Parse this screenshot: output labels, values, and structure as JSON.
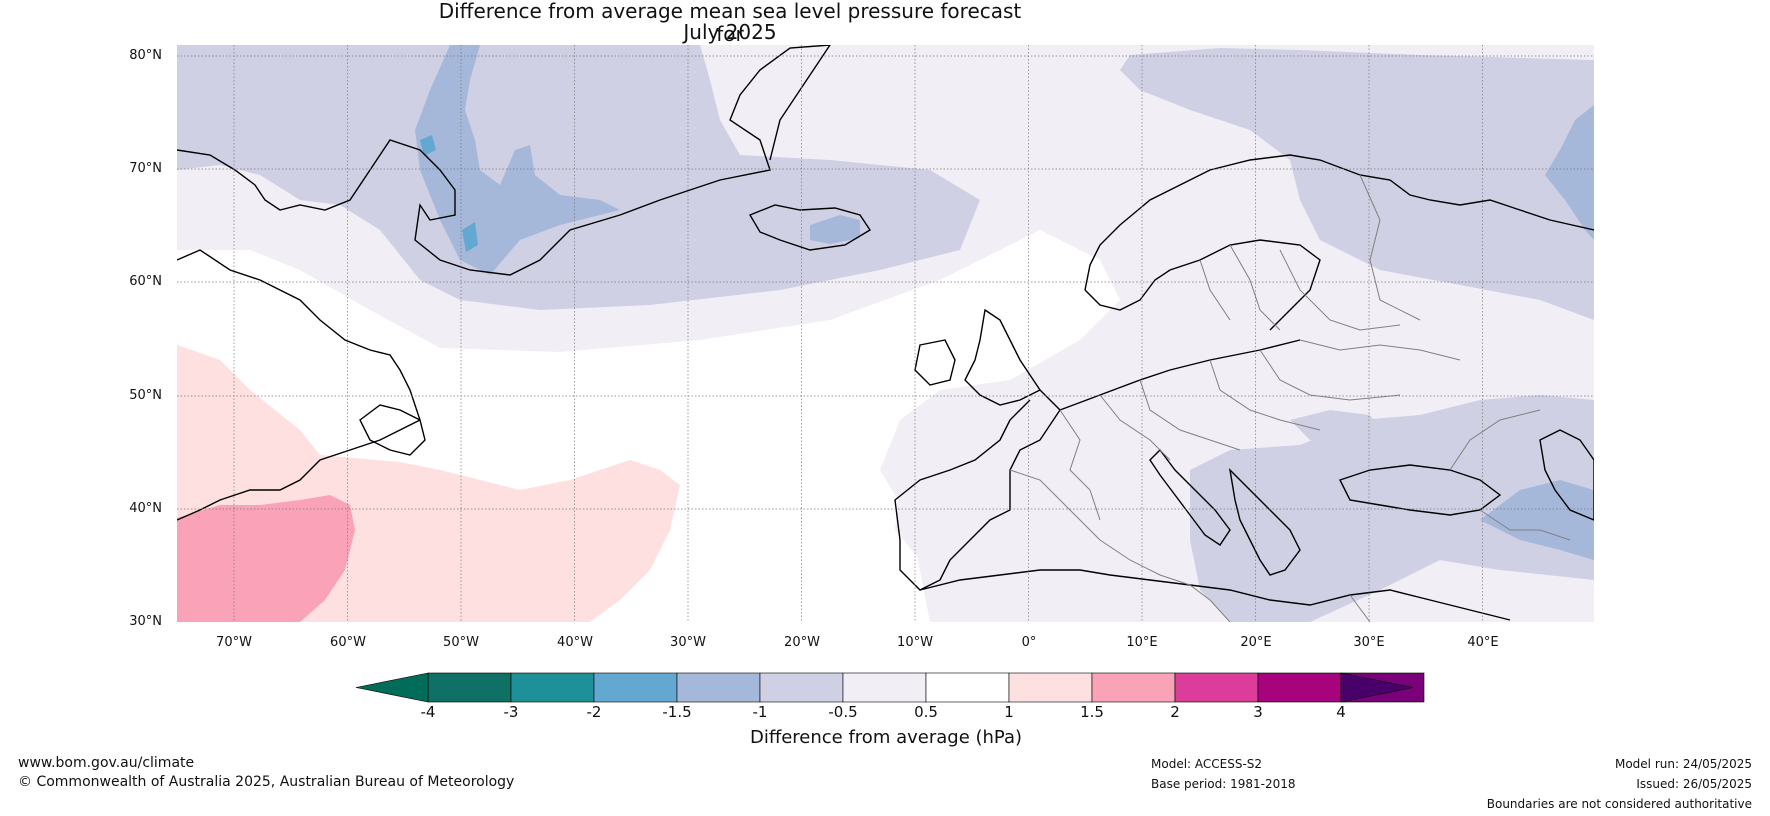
{
  "title": {
    "line1": "Difference from average mean sea level pressure forecast for",
    "line2": "July 2025"
  },
  "map": {
    "lat_labels": [
      "80°N",
      "70°N",
      "60°N",
      "50°N",
      "40°N",
      "30°N"
    ],
    "lon_labels": [
      "70°W",
      "60°W",
      "50°W",
      "40°W",
      "30°W",
      "20°W",
      "10°W",
      "0°",
      "10°E",
      "20°E",
      "30°E",
      "40°E"
    ],
    "ocean_color": "#ffffff",
    "coastline_color": "#000000",
    "border_color": "#808080"
  },
  "colorbar": {
    "title": "Difference from average (hPa)",
    "ticks": [
      "-4",
      "-3",
      "-2",
      "-1.5",
      "-1",
      "-0.5",
      "0.5",
      "1",
      "1.5",
      "2",
      "3",
      "4"
    ],
    "colors": [
      "#0f7066",
      "#1e9098",
      "#63a8d0",
      "#a6b8d9",
      "#d0d0e4",
      "#f2eef6",
      "#ffffff",
      "#fde0df",
      "#f9a2b8",
      "#dc3d9a",
      "#a6037d",
      "#7a017a"
    ],
    "low_extend_color": "#016c59",
    "high_extend_color": "#4a006a"
  },
  "footer": {
    "website": "www.bom.gov.au/climate",
    "copyright": "© Commonwealth of Australia 2025, Australian Bureau of Meteorology",
    "model": "Model: ACCESS-S2",
    "base_period": "Base period: 1981-2018",
    "model_run": "Model run: 24/05/2025",
    "issued": "Issued: 26/05/2025",
    "disclaimer": "Boundaries are not considered authoritative"
  }
}
